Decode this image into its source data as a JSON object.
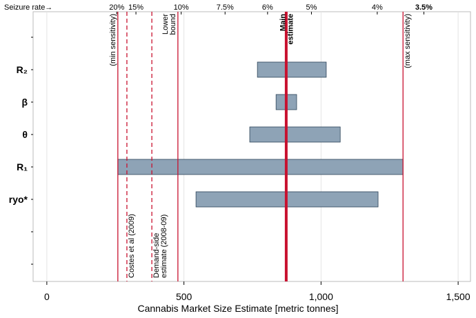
{
  "chart_data": {
    "type": "tornado",
    "xlabel": "Cannabis Market Size Estimate [metric tonnes]",
    "categories": [
      null,
      "R₂",
      "β",
      "θ",
      "R₁",
      "ryo*",
      null,
      null
    ],
    "low": [
      null,
      768,
      836,
      740,
      259,
      544,
      null,
      null
    ],
    "high": [
      null,
      1019,
      911,
      1070,
      1299,
      1208,
      null,
      null
    ],
    "center": 873,
    "bar_color": "#8ea3b6",
    "line_color": "#c8102e",
    "xlim": [
      -50,
      1545
    ],
    "xticks": [
      0,
      500,
      {
        "value": 1000,
        "label": "1,000"
      },
      {
        "value": 1500,
        "label": "1,500"
      }
    ],
    "grid": true,
    "top_axis": {
      "label": "Seizure rate→",
      "ticks": [
        {
          "value": 255,
          "label": "20%"
        },
        {
          "value": 325,
          "label": "15%"
        },
        {
          "value": 490,
          "label": "10%"
        },
        {
          "value": 650,
          "label": "7.5%"
        },
        {
          "value": 805,
          "label": "6%"
        },
        {
          "value": 965,
          "label": "5%"
        },
        {
          "value": 1205,
          "label": "4%"
        },
        {
          "value": 1375,
          "label": "3.5%",
          "bold": true
        }
      ]
    },
    "reference_lines": [
      {
        "value": 259,
        "label": [
          "(min sensitivity)"
        ],
        "style": "solid",
        "label_position": "top",
        "label_side": "left"
      },
      {
        "value": 292,
        "label": [
          "Costes et al (2009)"
        ],
        "style": "dashed",
        "label_position": "bottom",
        "label_side": "right"
      },
      {
        "value": 383,
        "label": [
          "Demand-side",
          "estimate (2008-09)"
        ],
        "style": "dashed",
        "label_position": "bottom",
        "label_side": "right"
      },
      {
        "value": 478,
        "label": [
          "Lower",
          "bound"
        ],
        "style": "solid",
        "label_position": "top",
        "label_side": "left"
      },
      {
        "value": 873,
        "label": [
          "Main",
          "estimate"
        ],
        "style": "thick",
        "label_position": "top",
        "label_side": "center"
      },
      {
        "value": 1299,
        "label": [
          "(max sensitivity)"
        ],
        "style": "solid",
        "label_position": "top",
        "label_side": "right"
      }
    ]
  }
}
